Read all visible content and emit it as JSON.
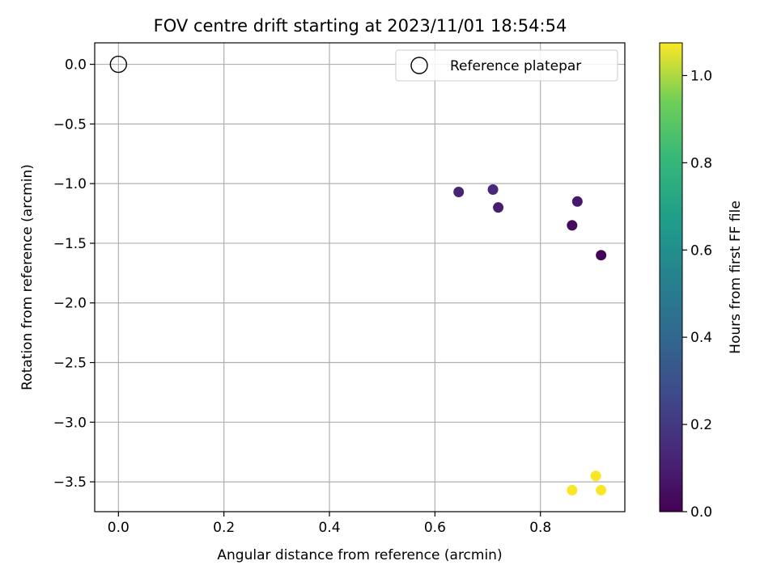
{
  "chart_data": {
    "type": "scatter",
    "title": "FOV centre drift starting at 2023/11/01 18:54:54",
    "xlabel": "Angular distance from reference (arcmin)",
    "ylabel": "Rotation from reference (arcmin)",
    "xlim": [
      -0.045,
      0.96
    ],
    "ylim": [
      -3.75,
      0.18
    ],
    "xticks": [
      0.0,
      0.2,
      0.4,
      0.6,
      0.8
    ],
    "xtick_labels": [
      "0.0",
      "0.2",
      "0.4",
      "0.6",
      "0.8"
    ],
    "yticks": [
      0.0,
      -0.5,
      -1.0,
      -1.5,
      -2.0,
      -2.5,
      -3.0,
      -3.5
    ],
    "ytick_labels": [
      "0.0",
      "−0.5",
      "−1.0",
      "−1.5",
      "−2.0",
      "−2.5",
      "−3.0",
      "−3.5"
    ],
    "grid": true,
    "legend": {
      "placement": "upper-right",
      "entries": [
        "Reference platepar"
      ]
    },
    "reference_point": {
      "name": "Reference platepar",
      "x": 0.0,
      "y": 0.0,
      "marker": "open-circle"
    },
    "points": [
      {
        "x": 0.645,
        "y": -1.07,
        "hours": 0.12
      },
      {
        "x": 0.71,
        "y": -1.05,
        "hours": 0.14
      },
      {
        "x": 0.72,
        "y": -1.2,
        "hours": 0.1
      },
      {
        "x": 0.87,
        "y": -1.15,
        "hours": 0.08
      },
      {
        "x": 0.86,
        "y": -1.35,
        "hours": 0.03
      },
      {
        "x": 0.915,
        "y": -1.6,
        "hours": 0.01
      },
      {
        "x": 0.905,
        "y": -3.45,
        "hours": 1.07
      },
      {
        "x": 0.86,
        "y": -3.57,
        "hours": 1.07
      },
      {
        "x": 0.915,
        "y": -3.57,
        "hours": 1.07
      }
    ],
    "colorbar": {
      "label": "Hours from first FF file",
      "colormap": "viridis",
      "range": [
        0.0,
        1.075
      ],
      "ticks": [
        0.0,
        0.2,
        0.4,
        0.6,
        0.8,
        1.0
      ],
      "tick_labels": [
        "0.0",
        "0.2",
        "0.4",
        "0.6",
        "0.8",
        "1.0"
      ]
    }
  }
}
